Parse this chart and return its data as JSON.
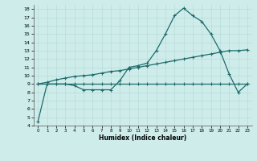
{
  "xlabel": "Humidex (Indice chaleur)",
  "background_color": "#ceecea",
  "grid_color": "#b8dbd9",
  "line_color": "#1e6b6b",
  "xlim": [
    -0.5,
    23.5
  ],
  "ylim": [
    4,
    18.5
  ],
  "yticks": [
    4,
    5,
    6,
    7,
    8,
    9,
    10,
    11,
    12,
    13,
    14,
    15,
    16,
    17,
    18
  ],
  "xticks": [
    0,
    1,
    2,
    3,
    4,
    5,
    6,
    7,
    8,
    9,
    10,
    11,
    12,
    13,
    14,
    15,
    16,
    17,
    18,
    19,
    20,
    21,
    22,
    23
  ],
  "line1_x": [
    0,
    1,
    2,
    3,
    4,
    5,
    6,
    7,
    8,
    9,
    10,
    11,
    12,
    13,
    14,
    15,
    16,
    17,
    18,
    19,
    20,
    21,
    22,
    23
  ],
  "line1_y": [
    4.5,
    9.0,
    9.0,
    9.0,
    8.8,
    8.3,
    8.3,
    8.3,
    8.3,
    9.4,
    11.0,
    11.2,
    11.5,
    13.0,
    15.0,
    17.2,
    18.1,
    17.2,
    16.5,
    15.0,
    13.0,
    10.2,
    8.0,
    9.0
  ],
  "line2_x": [
    0,
    1,
    2,
    3,
    4,
    5,
    6,
    7,
    8,
    9,
    10,
    11,
    12,
    13,
    14,
    15,
    16,
    17,
    18,
    19,
    20,
    21,
    22,
    23
  ],
  "line2_y": [
    9.0,
    9.0,
    9.0,
    9.0,
    9.0,
    9.0,
    9.0,
    9.0,
    9.0,
    9.0,
    9.0,
    9.0,
    9.0,
    9.0,
    9.0,
    9.0,
    9.0,
    9.0,
    9.0,
    9.0,
    9.0,
    9.0,
    9.0,
    9.0
  ],
  "line3_x": [
    0,
    1,
    2,
    3,
    4,
    5,
    6,
    7,
    8,
    9,
    10,
    11,
    12,
    13,
    14,
    15,
    16,
    17,
    18,
    19,
    20,
    21,
    22,
    23
  ],
  "line3_y": [
    9.0,
    9.2,
    9.5,
    9.7,
    9.9,
    10.0,
    10.1,
    10.3,
    10.5,
    10.6,
    10.8,
    11.0,
    11.2,
    11.4,
    11.6,
    11.8,
    12.0,
    12.2,
    12.4,
    12.6,
    12.8,
    13.0,
    13.0,
    13.1
  ]
}
